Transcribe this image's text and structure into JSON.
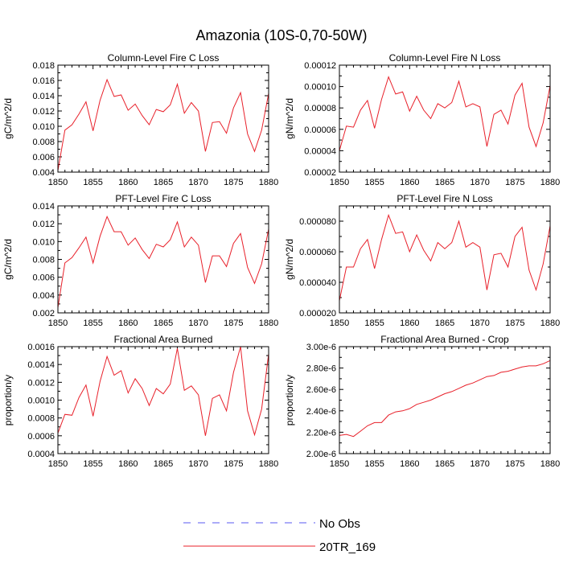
{
  "page": {
    "title": "Amazonia (10S-0,70-50W)"
  },
  "legend": {
    "items": [
      {
        "label": "No Obs",
        "color": "#5a5af0",
        "style": "dashed"
      },
      {
        "label": "20TR_169",
        "color": "#e8202a",
        "style": "solid"
      }
    ]
  },
  "chart_data": [
    {
      "type": "line",
      "title": "Column-Level Fire C Loss",
      "xlabel": "",
      "ylabel": "gC/m^2/d",
      "xlim": [
        1850,
        1880
      ],
      "ylim": [
        0.004,
        0.018
      ],
      "xticks": [
        1850,
        1855,
        1860,
        1865,
        1870,
        1875,
        1880
      ],
      "xtick_labels": [
        "1850",
        "1855",
        "1860",
        "1865",
        "1870",
        "1875",
        "1880"
      ],
      "yticks": [
        0.004,
        0.006,
        0.008,
        0.01,
        0.012,
        0.014,
        0.016,
        0.018
      ],
      "ytick_labels": [
        "0.004",
        "0.006",
        "0.008",
        "0.010",
        "0.012",
        "0.014",
        "0.016",
        "0.018"
      ],
      "x": [
        1850,
        1851,
        1852,
        1853,
        1854,
        1855,
        1856,
        1857,
        1858,
        1859,
        1860,
        1861,
        1862,
        1863,
        1864,
        1865,
        1866,
        1867,
        1868,
        1869,
        1870,
        1871,
        1872,
        1873,
        1874,
        1875,
        1876,
        1877,
        1878,
        1879,
        1880
      ],
      "series": [
        {
          "name": "20TR_169",
          "color": "#e8202a",
          "values": [
            0.0042,
            0.0095,
            0.0102,
            0.0116,
            0.0132,
            0.0094,
            0.0134,
            0.0161,
            0.0139,
            0.0141,
            0.0121,
            0.0129,
            0.0114,
            0.0102,
            0.0122,
            0.0119,
            0.0128,
            0.0155,
            0.0117,
            0.0131,
            0.012,
            0.0067,
            0.0105,
            0.0106,
            0.0091,
            0.0124,
            0.0144,
            0.009,
            0.0067,
            0.0095,
            0.0143
          ]
        }
      ]
    },
    {
      "type": "line",
      "title": "Column-Level Fire N Loss",
      "xlabel": "",
      "ylabel": "gN/m^2/d",
      "xlim": [
        1850,
        1880
      ],
      "ylim": [
        2e-05,
        0.00012
      ],
      "xticks": [
        1850,
        1855,
        1860,
        1865,
        1870,
        1875,
        1880
      ],
      "xtick_labels": [
        "1850",
        "1855",
        "1860",
        "1865",
        "1870",
        "1875",
        "1880"
      ],
      "yticks": [
        2e-05,
        4e-05,
        6e-05,
        8e-05,
        0.0001,
        0.00012
      ],
      "ytick_labels": [
        "0.00002",
        "0.00004",
        "0.00006",
        "0.00008",
        "0.00010",
        "0.00012"
      ],
      "x": [
        1850,
        1851,
        1852,
        1853,
        1854,
        1855,
        1856,
        1857,
        1858,
        1859,
        1860,
        1861,
        1862,
        1863,
        1864,
        1865,
        1866,
        1867,
        1868,
        1869,
        1870,
        1871,
        1872,
        1873,
        1874,
        1875,
        1876,
        1877,
        1878,
        1879,
        1880
      ],
      "series": [
        {
          "name": "20TR_169",
          "color": "#e8202a",
          "values": [
            4e-05,
            6.3e-05,
            6.2e-05,
            7.8e-05,
            8.7e-05,
            6.1e-05,
            8.8e-05,
            0.000109,
            9.3e-05,
            9.5e-05,
            7.7e-05,
            9.1e-05,
            7.8e-05,
            7e-05,
            8.4e-05,
            8e-05,
            8.5e-05,
            0.000105,
            8.1e-05,
            8.4e-05,
            8.1e-05,
            4.4e-05,
            7.4e-05,
            7.8e-05,
            6.5e-05,
            9.2e-05,
            0.000103,
            6.2e-05,
            4.4e-05,
            6.6e-05,
            0.000101
          ]
        }
      ]
    },
    {
      "type": "line",
      "title": "PFT-Level Fire C Loss",
      "xlabel": "",
      "ylabel": "gC/m^2/d",
      "xlim": [
        1850,
        1880
      ],
      "ylim": [
        0.002,
        0.014
      ],
      "xticks": [
        1850,
        1855,
        1860,
        1865,
        1870,
        1875,
        1880
      ],
      "xtick_labels": [
        "1850",
        "1855",
        "1860",
        "1865",
        "1870",
        "1875",
        "1880"
      ],
      "yticks": [
        0.002,
        0.004,
        0.006,
        0.008,
        0.01,
        0.012,
        0.014
      ],
      "ytick_labels": [
        "0.002",
        "0.004",
        "0.006",
        "0.008",
        "0.010",
        "0.012",
        "0.014"
      ],
      "x": [
        1850,
        1851,
        1852,
        1853,
        1854,
        1855,
        1856,
        1857,
        1858,
        1859,
        1860,
        1861,
        1862,
        1863,
        1864,
        1865,
        1866,
        1867,
        1868,
        1869,
        1870,
        1871,
        1872,
        1873,
        1874,
        1875,
        1876,
        1877,
        1878,
        1879,
        1880
      ],
      "series": [
        {
          "name": "20TR_169",
          "color": "#e8202a",
          "values": [
            0.0026,
            0.0076,
            0.0082,
            0.0093,
            0.0105,
            0.0076,
            0.0106,
            0.0128,
            0.0111,
            0.0111,
            0.0096,
            0.0104,
            0.0091,
            0.0081,
            0.0097,
            0.0094,
            0.0102,
            0.0122,
            0.0094,
            0.0105,
            0.0096,
            0.0054,
            0.0084,
            0.0084,
            0.0072,
            0.0098,
            0.0109,
            0.0071,
            0.0053,
            0.0075,
            0.0114
          ]
        }
      ]
    },
    {
      "type": "line",
      "title": "PFT-Level Fire N Loss",
      "xlabel": "",
      "ylabel": "gN/m^2/d",
      "xlim": [
        1850,
        1880
      ],
      "ylim": [
        2e-05,
        9e-05
      ],
      "xticks": [
        1850,
        1855,
        1860,
        1865,
        1870,
        1875,
        1880
      ],
      "xtick_labels": [
        "1850",
        "1855",
        "1860",
        "1865",
        "1870",
        "1875",
        "1880"
      ],
      "yticks": [
        2e-05,
        4e-05,
        6e-05,
        8e-05
      ],
      "ytick_labels": [
        "0.000020",
        "0.000040",
        "0.000060",
        "0.000080"
      ],
      "x": [
        1850,
        1851,
        1852,
        1853,
        1854,
        1855,
        1856,
        1857,
        1858,
        1859,
        1860,
        1861,
        1862,
        1863,
        1864,
        1865,
        1866,
        1867,
        1868,
        1869,
        1870,
        1871,
        1872,
        1873,
        1874,
        1875,
        1876,
        1877,
        1878,
        1879,
        1880
      ],
      "series": [
        {
          "name": "20TR_169",
          "color": "#e8202a",
          "values": [
            2.8e-05,
            5e-05,
            5e-05,
            6.2e-05,
            6.8e-05,
            4.9e-05,
            6.8e-05,
            8.4e-05,
            7.2e-05,
            7.3e-05,
            6e-05,
            7.1e-05,
            6.1e-05,
            5.4e-05,
            6.6e-05,
            6.2e-05,
            6.6e-05,
            8e-05,
            6.3e-05,
            6.6e-05,
            6.3e-05,
            3.5e-05,
            5.8e-05,
            5.9e-05,
            5e-05,
            7e-05,
            7.6e-05,
            4.8e-05,
            3.5e-05,
            5.2e-05,
            7.7e-05
          ]
        }
      ]
    },
    {
      "type": "line",
      "title": "Fractional Area Burned",
      "xlabel": "",
      "ylabel": "proportion/y",
      "xlim": [
        1850,
        1880
      ],
      "ylim": [
        0.0004,
        0.0016
      ],
      "xticks": [
        1850,
        1855,
        1860,
        1865,
        1870,
        1875,
        1880
      ],
      "xtick_labels": [
        "1850",
        "1855",
        "1860",
        "1865",
        "1870",
        "1875",
        "1880"
      ],
      "yticks": [
        0.0004,
        0.0006,
        0.0008,
        0.001,
        0.0012,
        0.0014,
        0.0016
      ],
      "ytick_labels": [
        "0.0004",
        "0.0006",
        "0.0008",
        "0.0010",
        "0.0012",
        "0.0014",
        "0.0016"
      ],
      "x": [
        1850,
        1851,
        1852,
        1853,
        1854,
        1855,
        1856,
        1857,
        1858,
        1859,
        1860,
        1861,
        1862,
        1863,
        1864,
        1865,
        1866,
        1867,
        1868,
        1869,
        1870,
        1871,
        1872,
        1873,
        1874,
        1875,
        1876,
        1877,
        1878,
        1879,
        1880
      ],
      "series": [
        {
          "name": "20TR_169",
          "color": "#e8202a",
          "values": [
            0.00063,
            0.00084,
            0.00083,
            0.00103,
            0.00117,
            0.00082,
            0.00121,
            0.00149,
            0.00128,
            0.00133,
            0.00108,
            0.00124,
            0.00113,
            0.00094,
            0.00113,
            0.00107,
            0.00118,
            0.00158,
            0.00111,
            0.00116,
            0.00106,
            0.0006,
            0.00102,
            0.00106,
            0.00088,
            0.00131,
            0.0016,
            0.00088,
            0.00061,
            0.0009,
            0.00152
          ]
        }
      ]
    },
    {
      "type": "line",
      "title": "Fractional Area Burned - Crop",
      "xlabel": "",
      "ylabel": "proportion/y",
      "xlim": [
        1850,
        1880
      ],
      "ylim": [
        2e-06,
        3e-06
      ],
      "xticks": [
        1850,
        1855,
        1860,
        1865,
        1870,
        1875,
        1880
      ],
      "xtick_labels": [
        "1850",
        "1855",
        "1860",
        "1865",
        "1870",
        "1875",
        "1880"
      ],
      "yticks": [
        2e-06,
        2.2e-06,
        2.4e-06,
        2.6e-06,
        2.8e-06,
        3e-06
      ],
      "ytick_labels": [
        "2.00e-6",
        "2.20e-6",
        "2.40e-6",
        "2.60e-6",
        "2.80e-6",
        "3.00e-6"
      ],
      "x": [
        1850,
        1851,
        1852,
        1853,
        1854,
        1855,
        1856,
        1857,
        1858,
        1859,
        1860,
        1861,
        1862,
        1863,
        1864,
        1865,
        1866,
        1867,
        1868,
        1869,
        1870,
        1871,
        1872,
        1873,
        1874,
        1875,
        1876,
        1877,
        1878,
        1879,
        1880
      ],
      "series": [
        {
          "name": "20TR_169",
          "color": "#e8202a",
          "values": [
            2.17e-06,
            2.18e-06,
            2.16e-06,
            2.21e-06,
            2.26e-06,
            2.29e-06,
            2.29e-06,
            2.36e-06,
            2.39e-06,
            2.4e-06,
            2.42e-06,
            2.46e-06,
            2.48e-06,
            2.5e-06,
            2.53e-06,
            2.56e-06,
            2.58e-06,
            2.61e-06,
            2.64e-06,
            2.66e-06,
            2.69e-06,
            2.72e-06,
            2.73e-06,
            2.76e-06,
            2.77e-06,
            2.79e-06,
            2.81e-06,
            2.82e-06,
            2.82e-06,
            2.84e-06,
            2.87e-06
          ]
        }
      ]
    }
  ]
}
